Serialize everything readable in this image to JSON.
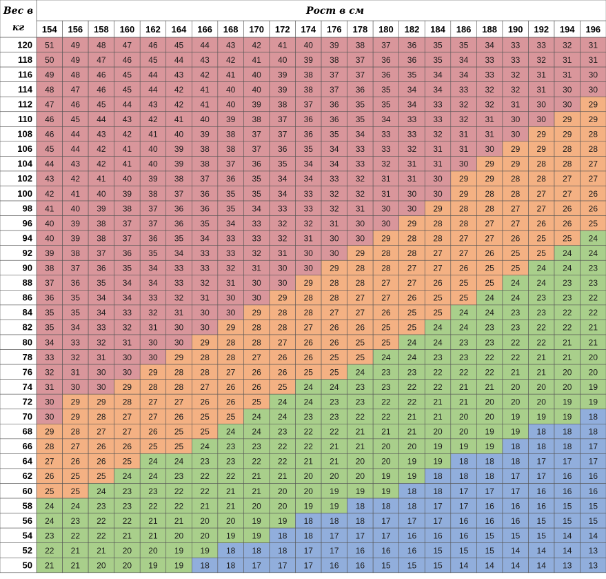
{
  "chart_data": {
    "type": "heatmap",
    "title": "Рост в см",
    "corner_label_line1": "Вес в",
    "corner_label_line2": "кг",
    "xlabel": "Рост в см",
    "ylabel": "Вес в кг",
    "x": [
      154,
      156,
      158,
      160,
      162,
      164,
      166,
      168,
      170,
      172,
      174,
      176,
      178,
      180,
      182,
      184,
      186,
      188,
      190,
      192,
      194,
      196
    ],
    "y": [
      120,
      118,
      116,
      114,
      112,
      110,
      108,
      106,
      104,
      102,
      100,
      98,
      96,
      94,
      92,
      90,
      88,
      86,
      84,
      82,
      80,
      78,
      76,
      74,
      72,
      70,
      68,
      66,
      64,
      62,
      60,
      58,
      56,
      54,
      52,
      50
    ],
    "values": [
      [
        51,
        49,
        48,
        47,
        46,
        45,
        44,
        43,
        42,
        41,
        40,
        39,
        38,
        37,
        36,
        35,
        35,
        34,
        33,
        33,
        32,
        31
      ],
      [
        50,
        49,
        47,
        46,
        45,
        44,
        43,
        42,
        41,
        40,
        39,
        38,
        37,
        36,
        36,
        35,
        34,
        33,
        33,
        32,
        31,
        31
      ],
      [
        49,
        48,
        46,
        45,
        44,
        43,
        42,
        41,
        40,
        39,
        38,
        37,
        37,
        36,
        35,
        34,
        34,
        33,
        32,
        31,
        31,
        30
      ],
      [
        48,
        47,
        46,
        45,
        44,
        42,
        41,
        40,
        40,
        39,
        38,
        37,
        36,
        35,
        34,
        34,
        33,
        32,
        32,
        31,
        30,
        30
      ],
      [
        47,
        46,
        45,
        44,
        43,
        42,
        41,
        40,
        39,
        38,
        37,
        36,
        35,
        35,
        34,
        33,
        32,
        32,
        31,
        30,
        30,
        29
      ],
      [
        46,
        45,
        44,
        43,
        42,
        41,
        40,
        39,
        38,
        37,
        36,
        36,
        35,
        34,
        33,
        33,
        32,
        31,
        30,
        30,
        29,
        29
      ],
      [
        46,
        44,
        43,
        42,
        41,
        40,
        39,
        38,
        37,
        37,
        36,
        35,
        34,
        33,
        33,
        32,
        31,
        31,
        30,
        29,
        29,
        28
      ],
      [
        45,
        44,
        42,
        41,
        40,
        39,
        38,
        38,
        37,
        36,
        35,
        34,
        33,
        33,
        32,
        31,
        31,
        30,
        29,
        29,
        28,
        28
      ],
      [
        44,
        43,
        42,
        41,
        40,
        39,
        38,
        37,
        36,
        35,
        34,
        34,
        33,
        32,
        31,
        31,
        30,
        29,
        29,
        28,
        28,
        27
      ],
      [
        43,
        42,
        41,
        40,
        39,
        38,
        37,
        36,
        35,
        34,
        34,
        33,
        32,
        31,
        31,
        30,
        29,
        29,
        28,
        28,
        27,
        27
      ],
      [
        42,
        41,
        40,
        39,
        38,
        37,
        36,
        35,
        35,
        34,
        33,
        32,
        32,
        31,
        30,
        30,
        29,
        28,
        28,
        27,
        27,
        26
      ],
      [
        41,
        40,
        39,
        38,
        37,
        36,
        36,
        35,
        34,
        33,
        33,
        32,
        31,
        30,
        30,
        29,
        28,
        28,
        27,
        27,
        26,
        26
      ],
      [
        40,
        39,
        38,
        37,
        37,
        36,
        35,
        34,
        33,
        32,
        32,
        31,
        30,
        30,
        29,
        28,
        28,
        27,
        27,
        26,
        26,
        25
      ],
      [
        40,
        39,
        38,
        37,
        36,
        35,
        34,
        33,
        33,
        32,
        31,
        30,
        30,
        29,
        28,
        28,
        27,
        27,
        26,
        25,
        25,
        24
      ],
      [
        39,
        38,
        37,
        36,
        35,
        34,
        33,
        33,
        32,
        31,
        30,
        30,
        29,
        28,
        28,
        27,
        27,
        26,
        25,
        25,
        24,
        24
      ],
      [
        38,
        37,
        36,
        35,
        34,
        33,
        33,
        32,
        31,
        30,
        30,
        29,
        28,
        28,
        27,
        27,
        26,
        25,
        25,
        24,
        24,
        23
      ],
      [
        37,
        36,
        35,
        34,
        34,
        33,
        32,
        31,
        30,
        30,
        29,
        28,
        28,
        27,
        27,
        26,
        25,
        25,
        24,
        24,
        23,
        23
      ],
      [
        36,
        35,
        34,
        34,
        33,
        32,
        31,
        30,
        30,
        29,
        28,
        28,
        27,
        27,
        26,
        25,
        25,
        24,
        24,
        23,
        23,
        22
      ],
      [
        35,
        35,
        34,
        33,
        32,
        31,
        30,
        30,
        29,
        28,
        28,
        27,
        27,
        26,
        25,
        25,
        24,
        24,
        23,
        23,
        22,
        22
      ],
      [
        35,
        34,
        33,
        32,
        31,
        30,
        30,
        29,
        28,
        28,
        27,
        26,
        26,
        25,
        25,
        24,
        24,
        23,
        23,
        22,
        22,
        21
      ],
      [
        34,
        33,
        32,
        31,
        30,
        30,
        29,
        28,
        28,
        27,
        26,
        26,
        25,
        25,
        24,
        24,
        23,
        23,
        22,
        22,
        21,
        21
      ],
      [
        33,
        32,
        31,
        30,
        30,
        29,
        28,
        28,
        27,
        26,
        26,
        25,
        25,
        24,
        24,
        23,
        23,
        22,
        22,
        21,
        21,
        20
      ],
      [
        32,
        31,
        30,
        30,
        29,
        28,
        28,
        27,
        26,
        26,
        25,
        25,
        24,
        23,
        23,
        22,
        22,
        22,
        21,
        21,
        20,
        20
      ],
      [
        31,
        30,
        30,
        29,
        28,
        28,
        27,
        26,
        26,
        25,
        24,
        24,
        23,
        23,
        22,
        22,
        21,
        21,
        20,
        20,
        20,
        19
      ],
      [
        30,
        29,
        29,
        28,
        27,
        27,
        26,
        26,
        25,
        24,
        24,
        23,
        23,
        22,
        22,
        21,
        21,
        20,
        20,
        20,
        19,
        19
      ],
      [
        30,
        29,
        28,
        27,
        27,
        26,
        25,
        25,
        24,
        24,
        23,
        23,
        22,
        22,
        21,
        21,
        20,
        20,
        19,
        19,
        19,
        18
      ],
      [
        29,
        28,
        27,
        27,
        26,
        25,
        25,
        24,
        24,
        23,
        22,
        22,
        21,
        21,
        21,
        20,
        20,
        19,
        19,
        18,
        18,
        18
      ],
      [
        28,
        27,
        26,
        26,
        25,
        25,
        24,
        23,
        23,
        22,
        22,
        21,
        21,
        20,
        20,
        19,
        19,
        19,
        18,
        18,
        18,
        17
      ],
      [
        27,
        26,
        26,
        25,
        24,
        24,
        23,
        23,
        22,
        22,
        21,
        21,
        20,
        20,
        19,
        19,
        18,
        18,
        18,
        17,
        17,
        17
      ],
      [
        26,
        25,
        25,
        24,
        24,
        23,
        22,
        22,
        21,
        21,
        20,
        20,
        20,
        19,
        19,
        18,
        18,
        18,
        17,
        17,
        16,
        16
      ],
      [
        25,
        25,
        24,
        23,
        23,
        22,
        22,
        21,
        21,
        20,
        20,
        19,
        19,
        19,
        18,
        18,
        17,
        17,
        17,
        16,
        16,
        16
      ],
      [
        24,
        24,
        23,
        23,
        22,
        22,
        21,
        21,
        20,
        20,
        19,
        19,
        18,
        18,
        18,
        17,
        17,
        16,
        16,
        16,
        15,
        15
      ],
      [
        24,
        23,
        22,
        22,
        21,
        21,
        20,
        20,
        19,
        19,
        18,
        18,
        18,
        17,
        17,
        17,
        16,
        16,
        16,
        15,
        15,
        15
      ],
      [
        23,
        22,
        22,
        21,
        21,
        20,
        20,
        19,
        19,
        18,
        18,
        17,
        17,
        17,
        16,
        16,
        16,
        15,
        15,
        15,
        14,
        14
      ],
      [
        22,
        21,
        21,
        20,
        20,
        19,
        19,
        18,
        18,
        18,
        17,
        17,
        16,
        16,
        16,
        15,
        15,
        15,
        14,
        14,
        14,
        13
      ],
      [
        21,
        21,
        20,
        20,
        19,
        19,
        18,
        18,
        17,
        17,
        17,
        16,
        16,
        15,
        15,
        15,
        14,
        14,
        14,
        14,
        13,
        13
      ]
    ],
    "color_bands": [
      {
        "min": 30,
        "color": "#d9969b"
      },
      {
        "min": 25,
        "color": "#f4b183"
      },
      {
        "min": 18.5,
        "color": "#a9cf8b"
      },
      {
        "min": 0,
        "color": "#91aedc"
      }
    ],
    "grid": true
  }
}
